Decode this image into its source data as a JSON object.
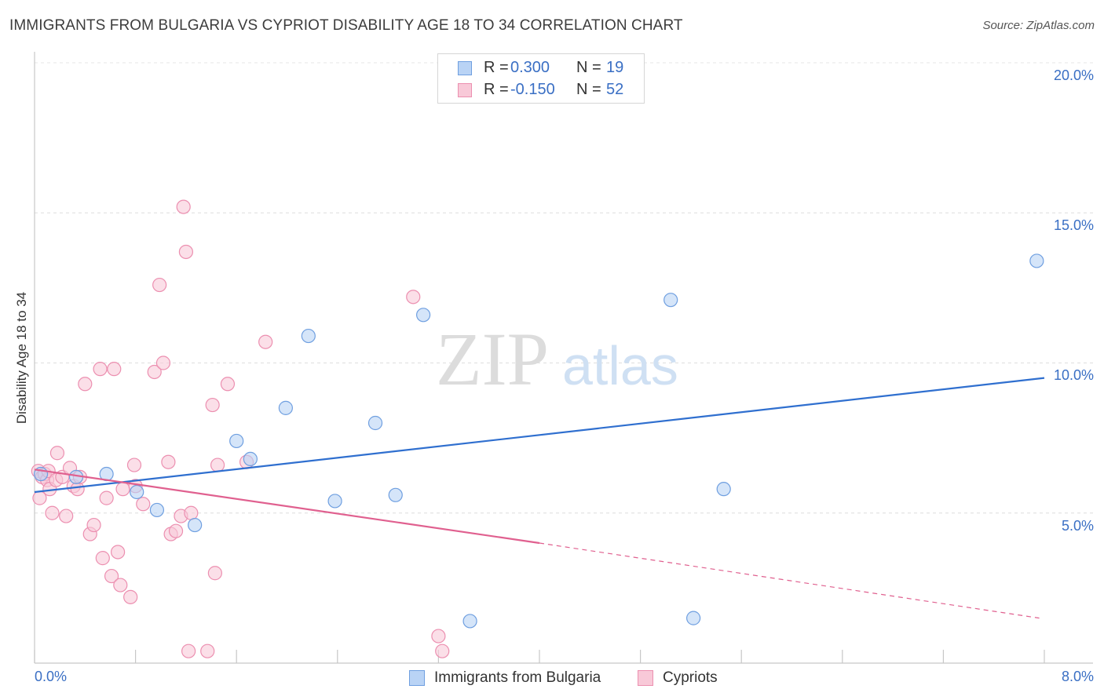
{
  "header": {
    "title": "IMMIGRANTS FROM BULGARIA VS CYPRIOT DISABILITY AGE 18 TO 34 CORRELATION CHART",
    "source": "Source: ZipAtlas.com"
  },
  "watermark": {
    "zip": "ZIP",
    "atlas": "atlas"
  },
  "legend_top": {
    "rows": [
      {
        "r_label": "R =",
        "r_value": "0.300",
        "n_label": "N =",
        "n_value": "19"
      },
      {
        "r_label": "R =",
        "r_value": "-0.150",
        "n_label": "N =",
        "n_value": "52"
      }
    ]
  },
  "legend_bottom": {
    "items": [
      {
        "label": "Immigrants from Bulgaria"
      },
      {
        "label": "Cypriots"
      }
    ]
  },
  "axes": {
    "x_min_label": "0.0%",
    "x_max_label": "8.0%",
    "y_ticks": [
      "20.0%",
      "15.0%",
      "10.0%",
      "5.0%"
    ]
  },
  "colors": {
    "blue_fill": "#b9d3f5",
    "blue_stroke": "#6f9fe0",
    "blue_line": "#2f6fcf",
    "pink_fill": "#f8c9d8",
    "pink_stroke": "#ec8fb0",
    "pink_line": "#e0608f"
  },
  "chart_data": {
    "type": "scatter",
    "title": "IMMIGRANTS FROM BULGARIA VS CYPRIOT DISABILITY AGE 18 TO 34 CORRELATION CHART",
    "xlabel": "",
    "ylabel": "Disability Age 18 to 34",
    "xlim": [
      0,
      8.0
    ],
    "ylim": [
      0,
      20.0
    ],
    "x_unit": "%",
    "y_unit": "%",
    "grid": true,
    "legend_position": "bottom",
    "series": [
      {
        "name": "Immigrants from Bulgaria",
        "color": "#6f9fe0",
        "r": 0.3,
        "n": 19,
        "trend": {
          "x": [
            0,
            8.0
          ],
          "y": [
            5.7,
            9.5
          ]
        },
        "points": [
          [
            0.05,
            6.3
          ],
          [
            0.33,
            6.2
          ],
          [
            0.57,
            6.3
          ],
          [
            0.81,
            5.7
          ],
          [
            0.97,
            5.1
          ],
          [
            1.27,
            4.6
          ],
          [
            1.6,
            7.4
          ],
          [
            1.71,
            6.8
          ],
          [
            1.99,
            8.5
          ],
          [
            2.17,
            10.9
          ],
          [
            2.38,
            5.4
          ],
          [
            2.7,
            8.0
          ],
          [
            2.86,
            5.6
          ],
          [
            3.08,
            11.6
          ],
          [
            3.45,
            1.4
          ],
          [
            5.04,
            12.1
          ],
          [
            5.22,
            1.5
          ],
          [
            5.46,
            5.8
          ],
          [
            7.94,
            13.4
          ]
        ]
      },
      {
        "name": "Cypriots",
        "color": "#ec8fb0",
        "r": -0.15,
        "n": 52,
        "trend": {
          "x": [
            0,
            4.0
          ],
          "y": [
            6.45,
            4.0
          ]
        },
        "trend_extended": {
          "x": [
            4.0,
            7.96
          ],
          "y": [
            4.0,
            1.5
          ]
        },
        "points": [
          [
            0.03,
            6.4
          ],
          [
            0.04,
            5.5
          ],
          [
            0.06,
            6.2
          ],
          [
            0.08,
            6.3
          ],
          [
            0.1,
            6.1
          ],
          [
            0.11,
            6.4
          ],
          [
            0.12,
            5.8
          ],
          [
            0.14,
            5.0
          ],
          [
            0.17,
            6.1
          ],
          [
            0.18,
            7.0
          ],
          [
            0.22,
            6.2
          ],
          [
            0.25,
            4.9
          ],
          [
            0.28,
            6.5
          ],
          [
            0.31,
            5.9
          ],
          [
            0.34,
            5.8
          ],
          [
            0.36,
            6.2
          ],
          [
            0.4,
            9.3
          ],
          [
            0.44,
            4.3
          ],
          [
            0.47,
            4.6
          ],
          [
            0.52,
            9.8
          ],
          [
            0.54,
            3.5
          ],
          [
            0.57,
            5.5
          ],
          [
            0.61,
            2.9
          ],
          [
            0.63,
            9.8
          ],
          [
            0.66,
            3.7
          ],
          [
            0.68,
            2.6
          ],
          [
            0.7,
            5.8
          ],
          [
            0.76,
            2.2
          ],
          [
            0.79,
            6.6
          ],
          [
            0.8,
            5.9
          ],
          [
            0.86,
            5.3
          ],
          [
            0.95,
            9.7
          ],
          [
            0.99,
            12.6
          ],
          [
            1.02,
            10.0
          ],
          [
            1.06,
            6.7
          ],
          [
            1.08,
            4.3
          ],
          [
            1.12,
            4.4
          ],
          [
            1.16,
            4.9
          ],
          [
            1.18,
            15.2
          ],
          [
            1.2,
            13.7
          ],
          [
            1.22,
            0.4
          ],
          [
            1.24,
            5.0
          ],
          [
            1.37,
            0.4
          ],
          [
            1.41,
            8.6
          ],
          [
            1.43,
            3.0
          ],
          [
            1.45,
            6.6
          ],
          [
            1.53,
            9.3
          ],
          [
            1.68,
            6.7
          ],
          [
            1.83,
            10.7
          ],
          [
            3.0,
            12.2
          ],
          [
            3.2,
            0.9
          ],
          [
            3.23,
            0.4
          ]
        ]
      }
    ]
  }
}
